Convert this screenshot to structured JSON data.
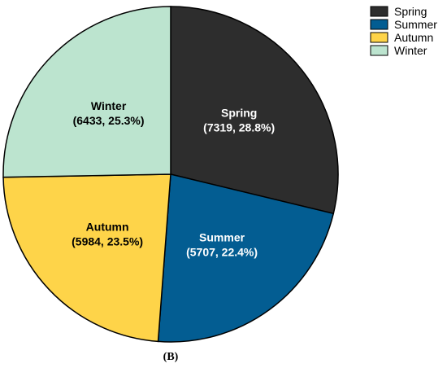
{
  "chart_data": {
    "type": "pie",
    "title": "",
    "panel_label": "(B)",
    "categories": [
      "Spring",
      "Summer",
      "Autumn",
      "Winter"
    ],
    "values": [
      7319,
      5707,
      5984,
      6433
    ],
    "percentages": [
      "28.8%",
      "22.4%",
      "23.5%",
      "25.3%"
    ],
    "slice_labels": [
      {
        "name": "Spring",
        "detail": "(7319, 28.8%)"
      },
      {
        "name": "Summer",
        "detail": "(5707, 22.4%)"
      },
      {
        "name": "Autumn",
        "detail": "(5984, 23.5%)"
      },
      {
        "name": "Winter",
        "detail": "(6433, 25.3%)"
      }
    ],
    "colors": [
      "#2d2d2d",
      "#035d92",
      "#fed449",
      "#bce4cf"
    ],
    "label_colors": [
      "#ffffff",
      "#ffffff",
      "#000000",
      "#000000"
    ],
    "start": "12 o'clock",
    "direction": "clockwise",
    "legend": {
      "placement": "top-right",
      "entries": [
        "Spring",
        "Summer",
        "Autumn",
        "Winter"
      ]
    }
  }
}
